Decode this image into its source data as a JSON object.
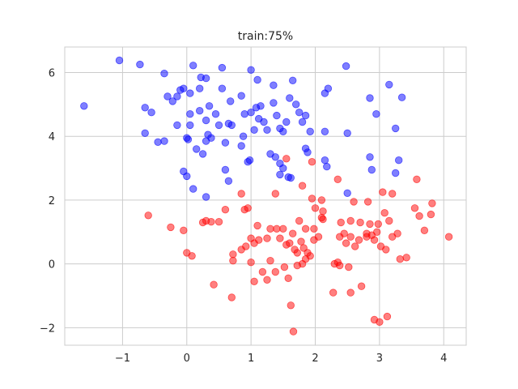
{
  "chart_data": {
    "type": "scatter",
    "title": "train:75%",
    "xlabel": "",
    "ylabel": "",
    "xlim": [
      -1.9,
      4.35
    ],
    "ylim": [
      -2.55,
      6.8
    ],
    "xticks": [
      -1,
      0,
      1,
      2,
      3,
      4
    ],
    "yticks": [
      -2,
      0,
      2,
      4,
      6
    ],
    "xtick_labels": [
      "−1",
      "0",
      "1",
      "2",
      "3",
      "4"
    ],
    "ytick_labels": [
      "−2",
      "0",
      "2",
      "4",
      "6"
    ],
    "grid": true,
    "series": [
      {
        "color": "#0000ff",
        "points": [
          [
            -1.05,
            6.38
          ],
          [
            -0.73,
            6.25
          ],
          [
            -1.6,
            4.95
          ],
          [
            -0.65,
            4.9
          ],
          [
            -0.55,
            4.75
          ],
          [
            -0.65,
            4.1
          ],
          [
            -0.35,
            5.97
          ],
          [
            -0.3,
            5.25
          ],
          [
            -0.22,
            5.1
          ],
          [
            -0.15,
            5.25
          ],
          [
            -0.1,
            5.45
          ],
          [
            -0.05,
            5.5
          ],
          [
            0.05,
            5.35
          ],
          [
            0.1,
            6.22
          ],
          [
            0.22,
            5.85
          ],
          [
            0.3,
            5.82
          ],
          [
            0.2,
            5.5
          ],
          [
            0.55,
            6.15
          ],
          [
            0.55,
            5.5
          ],
          [
            1.0,
            6.08
          ],
          [
            1.1,
            5.77
          ],
          [
            1.35,
            5.6
          ],
          [
            1.65,
            5.75
          ],
          [
            2.15,
            5.35
          ],
          [
            2.2,
            5.5
          ],
          [
            2.48,
            6.2
          ],
          [
            2.85,
            5.2
          ],
          [
            3.15,
            5.62
          ],
          [
            3.35,
            5.22
          ],
          [
            -0.45,
            3.82
          ],
          [
            -0.35,
            3.85
          ],
          [
            -0.15,
            4.35
          ],
          [
            0.05,
            4.35
          ],
          [
            0.05,
            4.7
          ],
          [
            0.2,
            4.8
          ],
          [
            0.35,
            4.95
          ],
          [
            0.3,
            4.5
          ],
          [
            0.45,
            4.7
          ],
          [
            0.65,
            4.4
          ],
          [
            0.7,
            4.35
          ],
          [
            0.68,
            5.1
          ],
          [
            0.85,
            5.27
          ],
          [
            0.9,
            4.7
          ],
          [
            1.0,
            4.75
          ],
          [
            1.08,
            4.9
          ],
          [
            1.15,
            4.95
          ],
          [
            1.12,
            4.55
          ],
          [
            1.2,
            4.45
          ],
          [
            1.05,
            4.2
          ],
          [
            1.25,
            4.2
          ],
          [
            1.35,
            5.05
          ],
          [
            1.4,
            4.65
          ],
          [
            1.45,
            4.25
          ],
          [
            1.5,
            4.15
          ],
          [
            1.55,
            4.45
          ],
          [
            1.6,
            5.2
          ],
          [
            1.7,
            5.0
          ],
          [
            1.75,
            4.75
          ],
          [
            1.8,
            4.45
          ],
          [
            1.85,
            4.65
          ],
          [
            1.92,
            4.15
          ],
          [
            2.15,
            4.15
          ],
          [
            2.5,
            4.1
          ],
          [
            2.95,
            4.7
          ],
          [
            3.25,
            4.25
          ],
          [
            0.0,
            3.95
          ],
          [
            0.02,
            3.9
          ],
          [
            0.15,
            3.6
          ],
          [
            0.25,
            3.45
          ],
          [
            0.3,
            3.85
          ],
          [
            0.33,
            4.05
          ],
          [
            0.38,
            3.95
          ],
          [
            0.5,
            4.35
          ],
          [
            0.6,
            3.8
          ],
          [
            0.6,
            2.95
          ],
          [
            0.65,
            2.6
          ],
          [
            0.85,
            3.7
          ],
          [
            0.88,
            4.0
          ],
          [
            0.95,
            3.2
          ],
          [
            0.98,
            3.25
          ],
          [
            1.3,
            3.45
          ],
          [
            1.38,
            3.35
          ],
          [
            1.45,
            3.15
          ],
          [
            1.5,
            3.0
          ],
          [
            1.58,
            2.72
          ],
          [
            1.62,
            2.7
          ],
          [
            1.85,
            3.62
          ],
          [
            1.88,
            3.5
          ],
          [
            2.15,
            3.25
          ],
          [
            2.18,
            3.05
          ],
          [
            2.85,
            3.35
          ],
          [
            2.88,
            2.95
          ],
          [
            3.3,
            3.25
          ],
          [
            3.25,
            2.85
          ],
          [
            -0.05,
            2.9
          ],
          [
            0.0,
            2.75
          ],
          [
            0.1,
            2.35
          ],
          [
            0.3,
            2.1
          ],
          [
            1.45,
            2.8
          ],
          [
            2.5,
            2.22
          ]
        ]
      },
      {
        "color": "#ff0000",
        "points": [
          [
            0.85,
            2.2
          ],
          [
            1.38,
            2.2
          ],
          [
            1.55,
            3.3
          ],
          [
            1.8,
            2.45
          ],
          [
            1.95,
            3.2
          ],
          [
            1.95,
            2.05
          ],
          [
            2.1,
            2.0
          ],
          [
            2.12,
            1.65
          ],
          [
            2.35,
            2.65
          ],
          [
            2.6,
            1.95
          ],
          [
            2.82,
            1.95
          ],
          [
            3.05,
            2.25
          ],
          [
            3.2,
            2.2
          ],
          [
            3.58,
            2.65
          ],
          [
            3.82,
            1.9
          ],
          [
            -0.6,
            1.52
          ],
          [
            -0.25,
            1.15
          ],
          [
            -0.05,
            1.05
          ],
          [
            0.25,
            1.3
          ],
          [
            0.3,
            1.35
          ],
          [
            0.38,
            1.32
          ],
          [
            0.5,
            1.32
          ],
          [
            0.6,
            1.7
          ],
          [
            0.9,
            1.7
          ],
          [
            0.95,
            1.75
          ],
          [
            1.1,
            1.2
          ],
          [
            1.5,
            1.1
          ],
          [
            1.75,
            1.35
          ],
          [
            1.85,
            1.1
          ],
          [
            1.98,
            1.1
          ],
          [
            2.0,
            1.75
          ],
          [
            2.1,
            1.45
          ],
          [
            2.12,
            1.4
          ],
          [
            2.4,
            1.3
          ],
          [
            2.55,
            1.35
          ],
          [
            2.7,
            1.3
          ],
          [
            2.85,
            1.25
          ],
          [
            2.98,
            1.25
          ],
          [
            3.08,
            1.6
          ],
          [
            3.15,
            1.35
          ],
          [
            3.55,
            1.75
          ],
          [
            3.62,
            1.5
          ],
          [
            3.8,
            1.55
          ],
          [
            3.7,
            1.05
          ],
          [
            4.08,
            0.85
          ],
          [
            0.0,
            0.35
          ],
          [
            0.08,
            0.25
          ],
          [
            0.72,
            0.3
          ],
          [
            0.85,
            0.45
          ],
          [
            0.92,
            0.55
          ],
          [
            1.0,
            0.8
          ],
          [
            1.05,
            0.65
          ],
          [
            1.12,
            0.75
          ],
          [
            1.25,
            0.8
          ],
          [
            1.3,
            1.1
          ],
          [
            1.4,
            1.1
          ],
          [
            1.45,
            0.8
          ],
          [
            1.55,
            0.6
          ],
          [
            1.6,
            0.65
          ],
          [
            1.65,
            0.95
          ],
          [
            1.68,
            0.45
          ],
          [
            1.72,
            0.35
          ],
          [
            1.78,
            0.7
          ],
          [
            1.82,
            0.5
          ],
          [
            1.88,
            0.35
          ],
          [
            1.92,
            0.25
          ],
          [
            1.98,
            0.75
          ],
          [
            2.05,
            0.85
          ],
          [
            2.38,
            0.85
          ],
          [
            2.45,
            0.95
          ],
          [
            2.48,
            0.65
          ],
          [
            2.55,
            0.85
          ],
          [
            2.62,
            0.55
          ],
          [
            2.68,
            0.75
          ],
          [
            2.8,
            0.95
          ],
          [
            2.92,
            0.75
          ],
          [
            3.02,
            0.55
          ],
          [
            3.1,
            0.45
          ],
          [
            3.2,
            0.85
          ],
          [
            3.28,
            0.95
          ],
          [
            3.32,
            0.15
          ],
          [
            3.42,
            0.2
          ],
          [
            2.8,
            0.85
          ],
          [
            2.88,
            0.9
          ],
          [
            2.96,
            1.0
          ],
          [
            0.42,
            -0.65
          ],
          [
            0.7,
            -1.05
          ],
          [
            0.72,
            0.1
          ],
          [
            1.0,
            0.05
          ],
          [
            1.05,
            -0.55
          ],
          [
            1.18,
            -0.25
          ],
          [
            1.25,
            -0.5
          ],
          [
            1.3,
            0.1
          ],
          [
            1.38,
            -0.25
          ],
          [
            1.52,
            -0.1
          ],
          [
            1.58,
            -0.45
          ],
          [
            1.62,
            -1.3
          ],
          [
            1.66,
            -2.12
          ],
          [
            1.72,
            -0.05
          ],
          [
            1.8,
            0.0
          ],
          [
            1.85,
            0.15
          ],
          [
            2.28,
            -0.9
          ],
          [
            2.3,
            0.0
          ],
          [
            2.35,
            0.05
          ],
          [
            2.38,
            -0.05
          ],
          [
            2.52,
            -0.1
          ],
          [
            2.55,
            -0.9
          ],
          [
            2.72,
            -0.7
          ],
          [
            2.92,
            -1.75
          ],
          [
            3.0,
            -1.82
          ],
          [
            3.12,
            -1.65
          ]
        ]
      }
    ]
  }
}
